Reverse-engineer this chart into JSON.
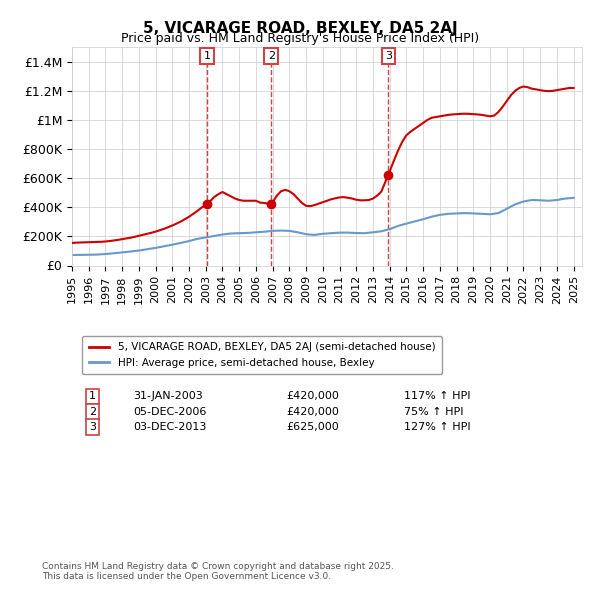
{
  "title": "5, VICARAGE ROAD, BEXLEY, DA5 2AJ",
  "subtitle": "Price paid vs. HM Land Registry's House Price Index (HPI)",
  "footer": "Contains HM Land Registry data © Crown copyright and database right 2025.\nThis data is licensed under the Open Government Licence v3.0.",
  "legend_line1": "5, VICARAGE ROAD, BEXLEY, DA5 2AJ (semi-detached house)",
  "legend_line2": "HPI: Average price, semi-detached house, Bexley",
  "red_color": "#cc0000",
  "blue_color": "#6699cc",
  "sale_color": "#cc0000",
  "vline_color": "#cc4444",
  "grid_color": "#cccccc",
  "background_color": "#ffffff",
  "ylim": [
    0,
    1500000
  ],
  "yticks": [
    0,
    200000,
    400000,
    600000,
    800000,
    1000000,
    1200000,
    1400000
  ],
  "ytick_labels": [
    "£0",
    "£200K",
    "£400K",
    "£600K",
    "£800K",
    "£1M",
    "£1.2M",
    "£1.4M"
  ],
  "xlim_start": 1995.0,
  "xlim_end": 2025.5,
  "sales": [
    {
      "num": 1,
      "year": 2003.08,
      "price": 420000,
      "date_str": "31-JAN-2003",
      "pct_str": "117% ↑ HPI"
    },
    {
      "num": 2,
      "year": 2006.92,
      "price": 420000,
      "date_str": "05-DEC-2006",
      "pct_str": "75% ↑ HPI"
    },
    {
      "num": 3,
      "year": 2013.92,
      "price": 625000,
      "date_str": "03-DEC-2013",
      "pct_str": "127% ↑ HPI"
    }
  ],
  "hpi_x": [
    1995.0,
    1995.5,
    1996.0,
    1996.5,
    1997.0,
    1997.5,
    1998.0,
    1998.5,
    1999.0,
    1999.5,
    2000.0,
    2000.5,
    2001.0,
    2001.5,
    2002.0,
    2002.5,
    2003.0,
    2003.5,
    2004.0,
    2004.5,
    2005.0,
    2005.5,
    2006.0,
    2006.5,
    2007.0,
    2007.5,
    2008.0,
    2008.5,
    2009.0,
    2009.5,
    2010.0,
    2010.5,
    2011.0,
    2011.5,
    2012.0,
    2012.5,
    2013.0,
    2013.5,
    2014.0,
    2014.5,
    2015.0,
    2015.5,
    2016.0,
    2016.5,
    2017.0,
    2017.5,
    2018.0,
    2018.5,
    2019.0,
    2019.5,
    2020.0,
    2020.5,
    2021.0,
    2021.5,
    2022.0,
    2022.5,
    2023.0,
    2023.5,
    2024.0,
    2024.5,
    2025.0
  ],
  "hpi_y": [
    72000,
    73000,
    74000,
    75000,
    79000,
    84000,
    90000,
    96000,
    103000,
    112000,
    121000,
    132000,
    143000,
    155000,
    168000,
    183000,
    193000,
    203000,
    213000,
    220000,
    222000,
    224000,
    228000,
    232000,
    238000,
    240000,
    238000,
    228000,
    215000,
    210000,
    218000,
    222000,
    226000,
    226000,
    223000,
    222000,
    228000,
    235000,
    250000,
    272000,
    288000,
    303000,
    318000,
    335000,
    348000,
    355000,
    358000,
    360000,
    358000,
    355000,
    352000,
    360000,
    390000,
    420000,
    440000,
    450000,
    448000,
    445000,
    450000,
    460000,
    465000
  ],
  "price_x": [
    1995.0,
    1995.25,
    1995.5,
    1995.75,
    1996.0,
    1996.25,
    1996.5,
    1996.75,
    1997.0,
    1997.25,
    1997.5,
    1997.75,
    1998.0,
    1998.25,
    1998.5,
    1998.75,
    1999.0,
    1999.25,
    1999.5,
    1999.75,
    2000.0,
    2000.25,
    2000.5,
    2000.75,
    2001.0,
    2001.25,
    2001.5,
    2001.75,
    2002.0,
    2002.25,
    2002.5,
    2002.75,
    2003.08,
    2003.5,
    2003.75,
    2004.0,
    2004.25,
    2004.5,
    2004.75,
    2005.0,
    2005.25,
    2005.5,
    2005.75,
    2006.0,
    2006.25,
    2006.5,
    2006.92,
    2007.25,
    2007.5,
    2007.75,
    2008.0,
    2008.25,
    2008.5,
    2008.75,
    2009.0,
    2009.25,
    2009.5,
    2009.75,
    2010.0,
    2010.25,
    2010.5,
    2010.75,
    2011.0,
    2011.25,
    2011.5,
    2011.75,
    2012.0,
    2012.25,
    2012.5,
    2012.75,
    2013.0,
    2013.25,
    2013.5,
    2013.92,
    2014.25,
    2014.5,
    2014.75,
    2015.0,
    2015.25,
    2015.5,
    2015.75,
    2016.0,
    2016.25,
    2016.5,
    2016.75,
    2017.0,
    2017.25,
    2017.5,
    2017.75,
    2018.0,
    2018.25,
    2018.5,
    2018.75,
    2019.0,
    2019.25,
    2019.5,
    2019.75,
    2020.0,
    2020.25,
    2020.5,
    2020.75,
    2021.0,
    2021.25,
    2021.5,
    2021.75,
    2022.0,
    2022.25,
    2022.5,
    2022.75,
    2023.0,
    2023.25,
    2023.5,
    2023.75,
    2024.0,
    2024.25,
    2024.5,
    2024.75,
    2025.0
  ],
  "price_y": [
    155000,
    157000,
    158000,
    159000,
    160000,
    161000,
    162000,
    163000,
    165000,
    168000,
    172000,
    176000,
    181000,
    186000,
    191000,
    197000,
    204000,
    211000,
    218000,
    225000,
    233000,
    242000,
    252000,
    263000,
    275000,
    288000,
    302000,
    318000,
    335000,
    355000,
    375000,
    398000,
    420000,
    470000,
    490000,
    505000,
    490000,
    475000,
    460000,
    450000,
    445000,
    445000,
    445000,
    445000,
    432000,
    430000,
    420000,
    480000,
    510000,
    520000,
    510000,
    490000,
    460000,
    430000,
    410000,
    408000,
    415000,
    425000,
    435000,
    445000,
    455000,
    462000,
    468000,
    470000,
    465000,
    460000,
    452000,
    448000,
    448000,
    450000,
    460000,
    480000,
    508000,
    625000,
    720000,
    790000,
    850000,
    895000,
    920000,
    940000,
    960000,
    980000,
    1000000,
    1015000,
    1020000,
    1025000,
    1030000,
    1035000,
    1038000,
    1040000,
    1042000,
    1043000,
    1042000,
    1040000,
    1038000,
    1035000,
    1030000,
    1025000,
    1030000,
    1055000,
    1090000,
    1130000,
    1170000,
    1200000,
    1220000,
    1230000,
    1225000,
    1215000,
    1210000,
    1205000,
    1200000,
    1198000,
    1200000,
    1205000,
    1210000,
    1215000,
    1220000,
    1220000
  ]
}
